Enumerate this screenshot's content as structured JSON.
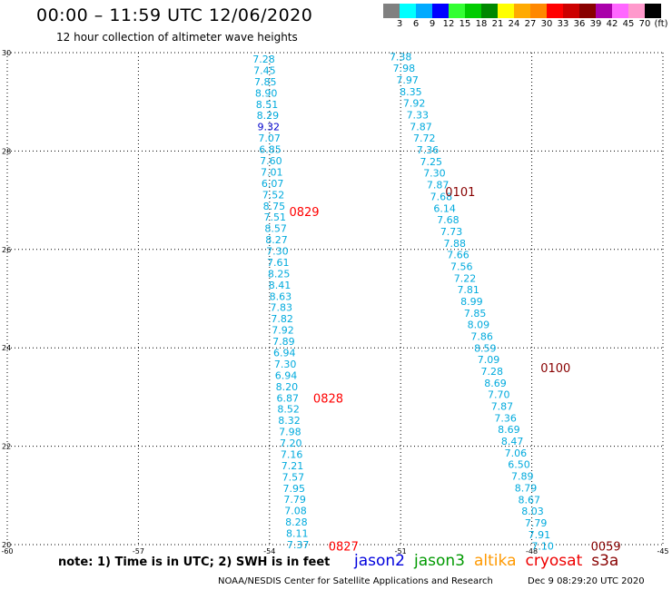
{
  "title": "00:00 – 11:59 UTC 12/06/2020",
  "subtitle": "12 hour collection of altimeter wave heights",
  "legend": {
    "colors": [
      "#808080",
      "#00ffff",
      "#00aaff",
      "#0000ff",
      "#33ff33",
      "#00cc00",
      "#008800",
      "#ffff00",
      "#ffaa00",
      "#ff8800",
      "#ff0000",
      "#cc0000",
      "#880000",
      "#aa00aa",
      "#ff66ff",
      "#ff99cc",
      "#000000"
    ],
    "labels": [
      "3",
      "6",
      "9",
      "12",
      "15",
      "18",
      "21",
      "24",
      "27",
      "30",
      "33",
      "36",
      "39",
      "42",
      "45",
      "70",
      "(ft)"
    ]
  },
  "map": {
    "lon_ticks": [
      "-60",
      "-57",
      "-54",
      "-51",
      "-48",
      "-45"
    ],
    "lat_ticks": [
      "30",
      "28",
      "26",
      "24",
      "22",
      "20"
    ],
    "lon_values": [
      -60,
      -57,
      -54,
      -51,
      -48,
      -45
    ],
    "lat_values": [
      30,
      28,
      26,
      24,
      22,
      20
    ],
    "lon_range": [
      -60,
      -45
    ],
    "lat_range": [
      20,
      30
    ],
    "grid": true,
    "default_value_color": "#00aadd",
    "highlight_value_color": "#0000cc",
    "track1_color": "#ff0000",
    "track2_color": "#880000",
    "track1": {
      "values": [
        "7.28",
        "7.45",
        "7.85",
        "8.90",
        "8.51",
        "8.29",
        "9.32",
        "7.07",
        "6.85",
        "7.60",
        "7.01",
        "6.07",
        "7.52",
        "8.75",
        "7.51",
        "8.57",
        "8.27",
        "7.30",
        "7.61",
        "8.25",
        "8.41",
        "8.63",
        "7.83",
        "7.82",
        "7.92",
        "7.89",
        "6.94",
        "7.30",
        "6.94",
        "8.20",
        "6.87",
        "8.52",
        "8.32",
        "7.98",
        "7.20",
        "7.16",
        "7.21",
        "7.57",
        "7.95",
        "7.79",
        "7.08",
        "8.28",
        "8.11",
        "7.37"
      ],
      "highlight_index": 6,
      "start_lat": 29.87,
      "start_lon": -54.13,
      "end_lat": 20.0,
      "end_lon": -53.35,
      "time_labels": [
        {
          "text": "0829",
          "lat": 26.77,
          "lon": -53.55
        },
        {
          "text": "0828",
          "lat": 22.98,
          "lon": -53.0
        },
        {
          "text": "0827",
          "lat": 19.97,
          "lon": -52.65
        }
      ]
    },
    "track2": {
      "values": [
        "7.38",
        "7.98",
        "7.97",
        "8.35",
        "7.92",
        "7.33",
        "7.87",
        "7.72",
        "7.36",
        "7.25",
        "7.30",
        "7.87",
        "7.68",
        "6.14",
        "7.68",
        "7.73",
        "7.88",
        "7.66",
        "7.56",
        "7.22",
        "7.81",
        "8.99",
        "7.85",
        "8.09",
        "7.86",
        "8.59",
        "7.09",
        "7.28",
        "8.69",
        "7.70",
        "7.87",
        "7.36",
        "8.69",
        "8.47",
        "7.06",
        "6.50",
        "7.89",
        "8.79",
        "8.67",
        "8.03",
        "7.79",
        "7.91",
        "7.10"
      ],
      "start_lat": 29.92,
      "start_lon": -51.0,
      "end_lat": 19.97,
      "end_lon": -47.75,
      "time_labels": [
        {
          "text": "0101",
          "lat": 27.18,
          "lon": -49.98
        },
        {
          "text": "0100",
          "lat": 23.6,
          "lon": -47.8
        },
        {
          "text": "0059",
          "lat": 19.97,
          "lon": -46.65
        }
      ]
    }
  },
  "note": "note: 1) Time is in UTC; 2) SWH is in feet",
  "satellites": [
    {
      "name": "jason2",
      "color": "#0000dd"
    },
    {
      "name": "jason3",
      "color": "#009900"
    },
    {
      "name": "altika",
      "color": "#ff9900"
    },
    {
      "name": "cryosat",
      "color": "#ee0000"
    },
    {
      "name": "s3a",
      "color": "#880000"
    }
  ],
  "footer": {
    "credit": "NOAA/NESDIS Center for Satellite Applications and Research",
    "timestamp": "Dec  9 08:29:20 UTC 2020"
  }
}
